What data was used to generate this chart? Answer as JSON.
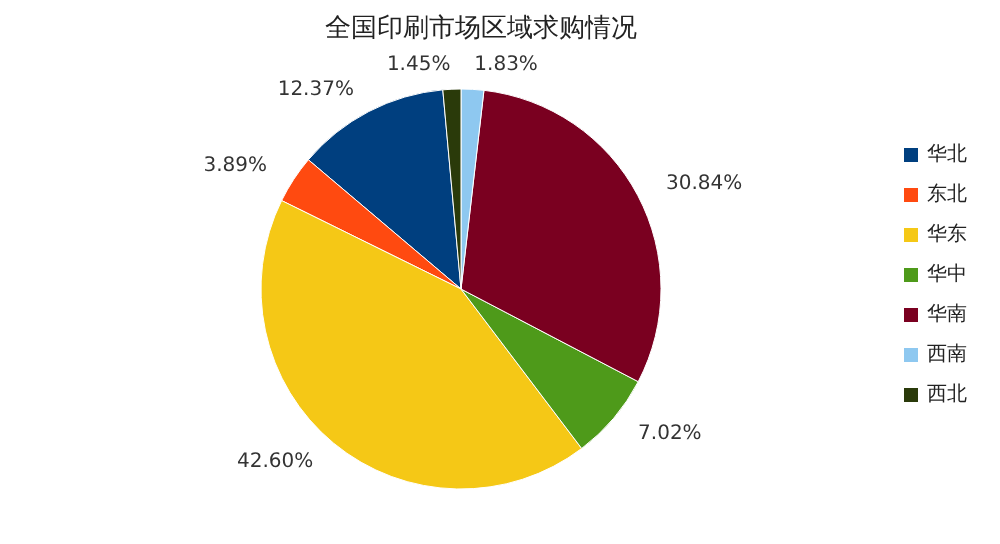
{
  "chart_data": {
    "type": "pie",
    "title": "全国印刷市场区域求购情况",
    "categories": [
      "华北",
      "东北",
      "华东",
      "华中",
      "华南",
      "西南",
      "西北"
    ],
    "values": [
      12.37,
      3.89,
      42.6,
      7.02,
      30.84,
      1.83,
      1.45
    ],
    "value_labels": [
      "12.37%",
      "3.89%",
      "42.60%",
      "7.02%",
      "30.84%",
      "1.83%",
      "1.45%"
    ],
    "colors": [
      "#003f7f",
      "#ff4a10",
      "#f5c816",
      "#4e9a1a",
      "#7a0020",
      "#8ec8f0",
      "#2a3a0a"
    ],
    "legend": "right"
  }
}
